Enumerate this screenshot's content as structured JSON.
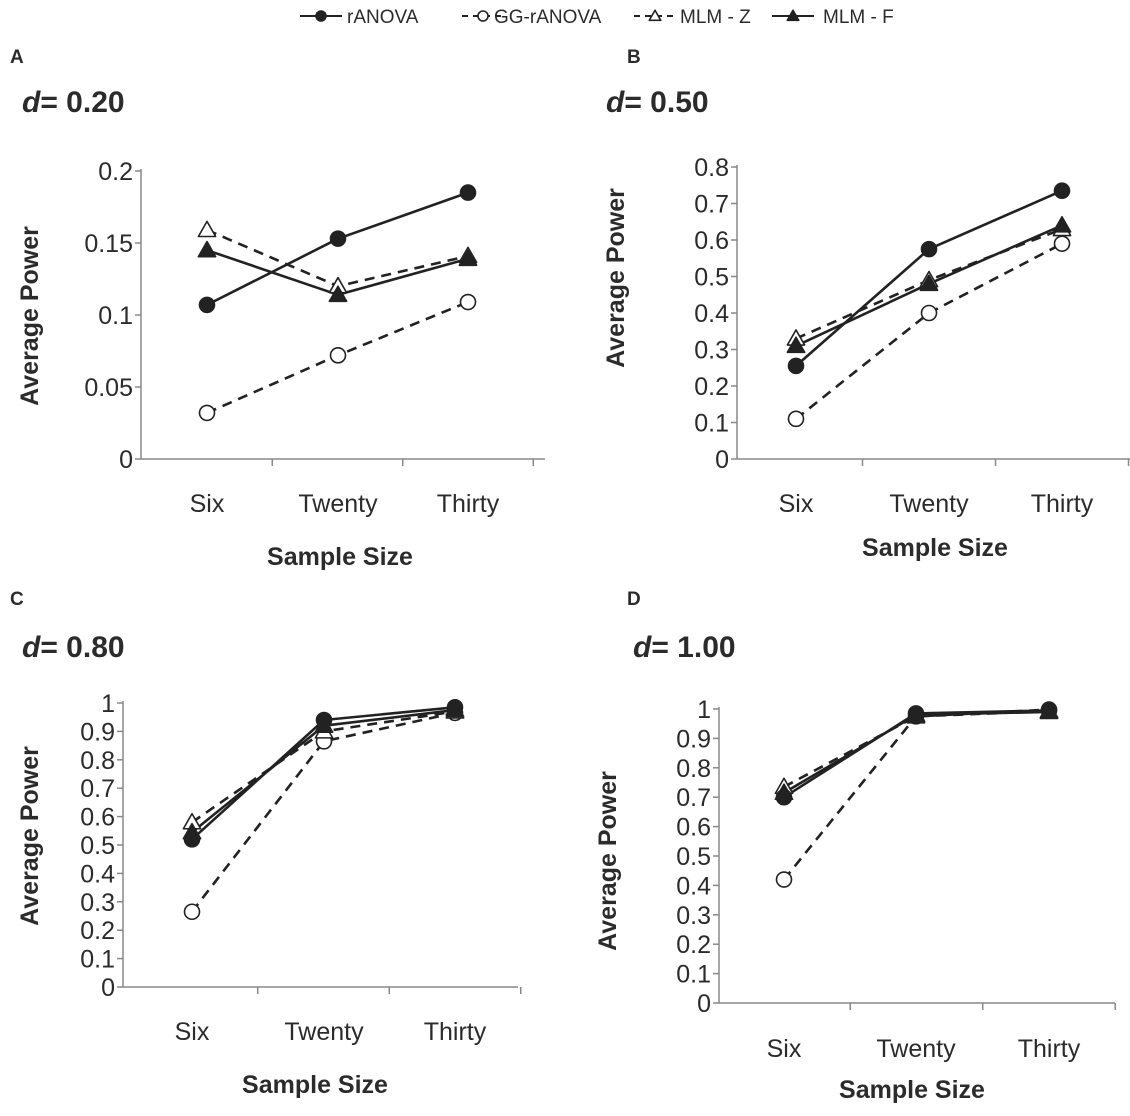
{
  "legend": [
    {
      "name": "rANOVA",
      "line": "solid",
      "marker": "circle",
      "fill": "filled"
    },
    {
      "name": "GG-rANOVA",
      "line": "dashed",
      "marker": "circle",
      "fill": "open"
    },
    {
      "name": "MLM - Z",
      "line": "dashed",
      "marker": "triangle",
      "fill": "open"
    },
    {
      "name": "MLM - F",
      "line": "solid",
      "marker": "triangle",
      "fill": "filled"
    }
  ],
  "legend_labels": [
    "rANOVA",
    "GG-rANOVA",
    "MLM - Z",
    "MLM - F"
  ],
  "colors": {
    "ink": "#222222",
    "axis": "#888888",
    "open_fill": "#ffffff"
  },
  "chart_data": [
    {
      "panel": "A",
      "effect_prefix": "d",
      "effect_value": "= 0.20",
      "type": "line",
      "categories": [
        "Six",
        "Twenty",
        "Thirty"
      ],
      "xlabel": "Sample Size",
      "ylabel": "Average Power",
      "ylim": [
        0,
        0.2
      ],
      "yticks": [
        "0",
        "0.05",
        "0.1",
        "0.15",
        "0.2"
      ],
      "series": [
        {
          "name": "rANOVA",
          "values": [
            0.107,
            0.153,
            0.185
          ]
        },
        {
          "name": "GG-rANOVA",
          "values": [
            0.032,
            0.072,
            0.109
          ]
        },
        {
          "name": "MLM - Z",
          "values": [
            0.159,
            0.12,
            0.141
          ]
        },
        {
          "name": "MLM - F",
          "values": [
            0.145,
            0.114,
            0.139
          ]
        }
      ]
    },
    {
      "panel": "B",
      "effect_prefix": "d",
      "effect_value": "= 0.50",
      "type": "line",
      "categories": [
        "Six",
        "Twenty",
        "Thirty"
      ],
      "xlabel": "Sample Size",
      "ylabel": "Average Power",
      "ylim": [
        0,
        0.8
      ],
      "yticks": [
        "0",
        "0.1",
        "0.2",
        "0.3",
        "0.4",
        "0.5",
        "0.6",
        "0.7",
        "0.8"
      ],
      "series": [
        {
          "name": "rANOVA",
          "values": [
            0.255,
            0.575,
            0.735
          ]
        },
        {
          "name": "GG-rANOVA",
          "values": [
            0.11,
            0.4,
            0.59
          ]
        },
        {
          "name": "MLM - Z",
          "values": [
            0.33,
            0.49,
            0.63
          ]
        },
        {
          "name": "MLM - F",
          "values": [
            0.31,
            0.48,
            0.64
          ]
        }
      ]
    },
    {
      "panel": "C",
      "effect_prefix": "d",
      "effect_value": "= 0.80",
      "type": "line",
      "categories": [
        "Six",
        "Twenty",
        "Thirty"
      ],
      "xlabel": "Sample Size",
      "ylabel": "Average Power",
      "ylim": [
        0,
        1
      ],
      "yticks": [
        "0",
        "0.1",
        "0.2",
        "0.3",
        "0.4",
        "0.5",
        "0.6",
        "0.7",
        "0.8",
        "0.9",
        "1"
      ],
      "series": [
        {
          "name": "rANOVA",
          "values": [
            0.52,
            0.94,
            0.985
          ]
        },
        {
          "name": "GG-rANOVA",
          "values": [
            0.265,
            0.865,
            0.965
          ]
        },
        {
          "name": "MLM - Z",
          "values": [
            0.58,
            0.9,
            0.97
          ]
        },
        {
          "name": "MLM - F",
          "values": [
            0.545,
            0.92,
            0.975
          ]
        }
      ]
    },
    {
      "panel": "D",
      "effect_prefix": "d",
      "effect_value": "= 1.00",
      "type": "line",
      "categories": [
        "Six",
        "Twenty",
        "Thirty"
      ],
      "xlabel": "Sample Size",
      "ylabel": "Average Power",
      "ylim": [
        0,
        1
      ],
      "yticks": [
        "0",
        "0.1",
        "0.2",
        "0.3",
        "0.4",
        "0.5",
        "0.6",
        "0.7",
        "0.8",
        "0.9",
        "1"
      ],
      "series": [
        {
          "name": "rANOVA",
          "values": [
            0.7,
            0.985,
            0.995
          ]
        },
        {
          "name": "GG-rANOVA",
          "values": [
            0.42,
            0.975,
            0.998
          ]
        },
        {
          "name": "MLM - Z",
          "values": [
            0.735,
            0.975,
            0.993
          ]
        },
        {
          "name": "MLM - F",
          "values": [
            0.715,
            0.98,
            0.99
          ]
        }
      ]
    }
  ]
}
